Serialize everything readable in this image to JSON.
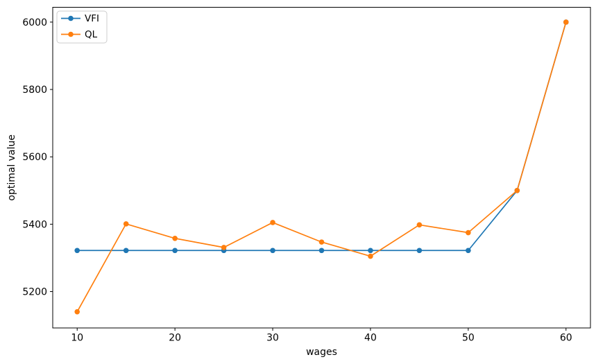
{
  "chart_data": {
    "type": "line",
    "title": "",
    "xlabel": "wages",
    "ylabel": "optimal value",
    "x": [
      10,
      15,
      20,
      25,
      30,
      35,
      40,
      45,
      50,
      55,
      60
    ],
    "series": [
      {
        "name": "VFI",
        "color": "#1f77b4",
        "marker": "circle",
        "values": [
          5322,
          5322,
          5322,
          5322,
          5322,
          5322,
          5322,
          5322,
          5322,
          5500,
          6000
        ]
      },
      {
        "name": "QL",
        "color": "#ff7f0e",
        "marker": "circle",
        "values": [
          5140,
          5401,
          5358,
          5331,
          5405,
          5347,
          5305,
          5398,
          5375,
          5500,
          6000
        ]
      }
    ],
    "xticks": [
      10,
      20,
      30,
      40,
      50,
      60
    ],
    "yticks": [
      5200,
      5400,
      5600,
      5800,
      6000
    ],
    "xlim": [
      7.5,
      62.5
    ],
    "ylim": [
      5092,
      6044
    ],
    "grid": false,
    "legend_position": "upper left",
    "frame_color": "#000000",
    "legend_border_color": "#cccccc",
    "background_color": "#ffffff"
  }
}
